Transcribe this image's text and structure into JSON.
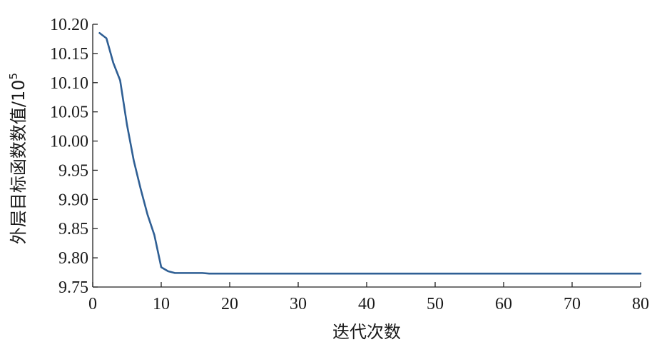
{
  "chart_data": {
    "type": "line",
    "xlabel": "迭代次数",
    "ylabel": "外层目标函数数值/10",
    "ylabel_superscript": "5",
    "xlim": [
      0,
      80
    ],
    "ylim": [
      9.75,
      10.2
    ],
    "xticks": [
      0,
      10,
      20,
      30,
      40,
      50,
      60,
      70,
      80
    ],
    "yticks": [
      "9.75",
      "9.80",
      "9.85",
      "9.90",
      "9.95",
      "10.00",
      "10.05",
      "10.10",
      "10.15",
      "10.20"
    ],
    "grid": false,
    "series": [
      {
        "color": "#2f5f94",
        "x": [
          1,
          2,
          3,
          4,
          5,
          6,
          7,
          8,
          9,
          10,
          11,
          12,
          13,
          14,
          15,
          16,
          17,
          18,
          19,
          20,
          30,
          40,
          50,
          60,
          70,
          80
        ],
        "y": [
          10.185,
          10.176,
          10.134,
          10.104,
          10.028,
          9.966,
          9.918,
          9.874,
          9.839,
          9.784,
          9.777,
          9.774,
          9.774,
          9.774,
          9.774,
          9.774,
          9.773,
          9.773,
          9.773,
          9.773,
          9.773,
          9.773,
          9.773,
          9.773,
          9.773,
          9.773
        ]
      }
    ]
  }
}
